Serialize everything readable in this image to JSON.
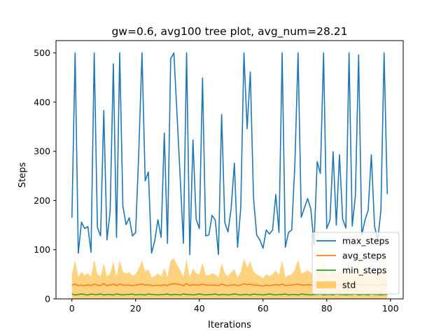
{
  "chart_data": {
    "type": "line",
    "title": "gw=0.6, avg100 tree plot, avg_num=28.21",
    "xlabel": "Iterations",
    "ylabel": "Steps",
    "xlim": [
      -5,
      104
    ],
    "ylim": [
      0,
      525
    ],
    "xticks": [
      0,
      20,
      40,
      60,
      80,
      100
    ],
    "yticks": [
      0,
      100,
      200,
      300,
      400,
      500
    ],
    "grid": false,
    "legend_position": "lower-right",
    "x": [
      0,
      1,
      2,
      3,
      4,
      5,
      6,
      7,
      8,
      9,
      10,
      11,
      12,
      13,
      14,
      15,
      16,
      17,
      18,
      19,
      20,
      21,
      22,
      23,
      24,
      25,
      26,
      27,
      28,
      29,
      30,
      31,
      32,
      33,
      34,
      35,
      36,
      37,
      38,
      39,
      40,
      41,
      42,
      43,
      44,
      45,
      46,
      47,
      48,
      49,
      50,
      51,
      52,
      53,
      54,
      55,
      56,
      57,
      58,
      59,
      60,
      61,
      62,
      63,
      64,
      65,
      66,
      67,
      68,
      69,
      70,
      71,
      72,
      73,
      74,
      75,
      76,
      77,
      78,
      79,
      80,
      81,
      82,
      83,
      84,
      85,
      86,
      87,
      88,
      89,
      90,
      91,
      92,
      93,
      94,
      95,
      96,
      97,
      98,
      99
    ],
    "series": [
      {
        "name": "max_steps",
        "color": "#1f77b4",
        "values": [
          165,
          500,
          93,
          156,
          143,
          147,
          95,
          500,
          145,
          128,
          383,
          120,
          178,
          478,
          125,
          500,
          188,
          151,
          165,
          128,
          135,
          300,
          500,
          240,
          258,
          93,
          118,
          161,
          125,
          337,
          113,
          488,
          500,
          375,
          245,
          113,
          500,
          90,
          323,
          162,
          143,
          449,
          128,
          130,
          170,
          160,
          90,
          375,
          155,
          136,
          185,
          276,
          105,
          185,
          500,
          346,
          461,
          206,
          130,
          120,
          103,
          140,
          132,
          140,
          212,
          135,
          500,
          105,
          135,
          140,
          275,
          500,
          166,
          185,
          204,
          183,
          110,
          279,
          255,
          500,
          143,
          160,
          299,
          150,
          293,
          162,
          144,
          500,
          148,
          210,
          496,
          130,
          160,
          180,
          293,
          148,
          120,
          180,
          500,
          213
        ]
      },
      {
        "name": "avg_steps",
        "color": "#ff7f0e",
        "values": [
          28,
          30,
          27,
          28,
          27,
          29,
          27,
          30,
          28,
          27,
          31,
          27,
          28,
          30,
          27,
          30,
          28,
          28,
          28,
          27,
          28,
          29,
          30,
          28,
          29,
          27,
          27,
          28,
          27,
          29,
          27,
          30,
          31,
          30,
          29,
          27,
          31,
          27,
          29,
          28,
          28,
          30,
          28,
          28,
          28,
          28,
          27,
          30,
          28,
          27,
          28,
          29,
          27,
          28,
          31,
          29,
          30,
          28,
          28,
          27,
          26,
          28,
          27,
          28,
          29,
          28,
          30,
          27,
          28,
          28,
          29,
          30,
          28,
          28,
          29,
          28,
          27,
          29,
          29,
          30,
          28,
          28,
          29,
          28,
          29,
          28,
          28,
          30,
          28,
          29,
          30,
          28,
          28,
          28,
          29,
          28,
          27,
          28,
          30,
          29
        ]
      },
      {
        "name": "min_steps",
        "color": "#2ca02c",
        "values": [
          10,
          8,
          9,
          10,
          9,
          8,
          10,
          9,
          9,
          10,
          8,
          9,
          9,
          8,
          10,
          9,
          8,
          9,
          9,
          10,
          8,
          9,
          9,
          8,
          10,
          9,
          9,
          8,
          9,
          9,
          10,
          8,
          9,
          9,
          8,
          10,
          9,
          9,
          8,
          9,
          10,
          9,
          8,
          9,
          9,
          10,
          8,
          9,
          9,
          8,
          9,
          10,
          9,
          8,
          9,
          9,
          8,
          10,
          9,
          9,
          8,
          9,
          10,
          9,
          8,
          9,
          9,
          10,
          8,
          9,
          9,
          8,
          10,
          9,
          9,
          8,
          9,
          9,
          10,
          8,
          9,
          9,
          8,
          10,
          9,
          9,
          8,
          9,
          9,
          10,
          8,
          9,
          9,
          8,
          10,
          9,
          9,
          8,
          9,
          9
        ]
      },
      {
        "name": "std",
        "color": "#ffa500",
        "kind": "band",
        "band_lower": [
          0,
          0,
          0,
          0,
          0,
          0,
          0,
          0,
          0,
          0,
          0,
          0,
          0,
          0,
          0,
          0,
          0,
          0,
          0,
          0,
          0,
          0,
          0,
          0,
          0,
          0,
          0,
          0,
          0,
          0,
          0,
          0,
          0,
          0,
          0,
          0,
          0,
          0,
          0,
          0,
          0,
          0,
          0,
          0,
          0,
          0,
          0,
          0,
          0,
          0,
          0,
          0,
          0,
          0,
          0,
          0,
          0,
          0,
          0,
          0,
          0,
          0,
          0,
          0,
          0,
          0,
          0,
          0,
          0,
          0,
          0,
          0,
          0,
          0,
          0,
          0,
          0,
          0,
          0,
          0,
          0,
          0,
          0,
          0,
          0,
          0,
          0,
          0,
          0,
          0,
          0,
          0,
          0,
          0,
          0,
          0,
          0,
          0,
          0,
          0
        ],
        "band_upper": [
          50,
          78,
          45,
          55,
          48,
          52,
          45,
          80,
          50,
          46,
          72,
          46,
          52,
          76,
          45,
          78,
          55,
          52,
          54,
          47,
          50,
          62,
          78,
          56,
          60,
          44,
          46,
          52,
          46,
          62,
          45,
          78,
          82,
          70,
          58,
          45,
          80,
          44,
          62,
          52,
          50,
          74,
          48,
          48,
          52,
          50,
          44,
          72,
          52,
          46,
          54,
          60,
          44,
          54,
          82,
          64,
          76,
          56,
          50,
          46,
          42,
          50,
          46,
          50,
          58,
          48,
          78,
          44,
          48,
          50,
          60,
          80,
          52,
          54,
          58,
          54,
          44,
          60,
          58,
          78,
          48,
          50,
          60,
          50,
          62,
          52,
          48,
          80,
          50,
          56,
          80,
          48,
          52,
          54,
          60,
          50,
          46,
          54,
          78,
          56
        ]
      }
    ]
  }
}
